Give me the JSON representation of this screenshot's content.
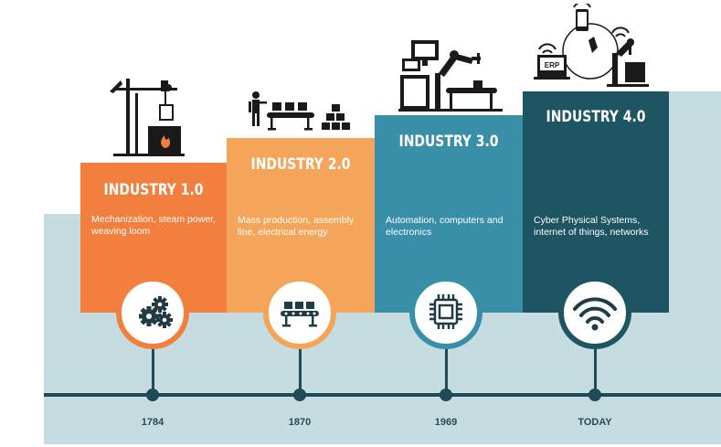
{
  "stages": [
    {
      "title": "INDUSTRY 1.0",
      "description": "Mechanization, steam power, weaving loom",
      "year": "1784",
      "icon": "gears-icon",
      "color": "#f27f3d"
    },
    {
      "title": "INDUSTRY 2.0",
      "description": "Mass production, assembly line, electrical energy",
      "year": "1870",
      "icon": "conveyor-icon",
      "color": "#f4a55a"
    },
    {
      "title": "INDUSTRY 3.0",
      "description": "Automation, computers and electronics",
      "year": "1969",
      "icon": "chip-icon",
      "color": "#3a8fa8"
    },
    {
      "title": "INDUSTRY 4.0",
      "description": "Cyber Physical Systems, internet of things, networks",
      "year": "TODAY",
      "icon": "wifi-icon",
      "color": "#1e5563"
    }
  ],
  "erp_label": "ERP",
  "colors": {
    "background_band": "#c5dde1",
    "timeline": "#1f4b57",
    "illustration": "#1a1a1a"
  }
}
